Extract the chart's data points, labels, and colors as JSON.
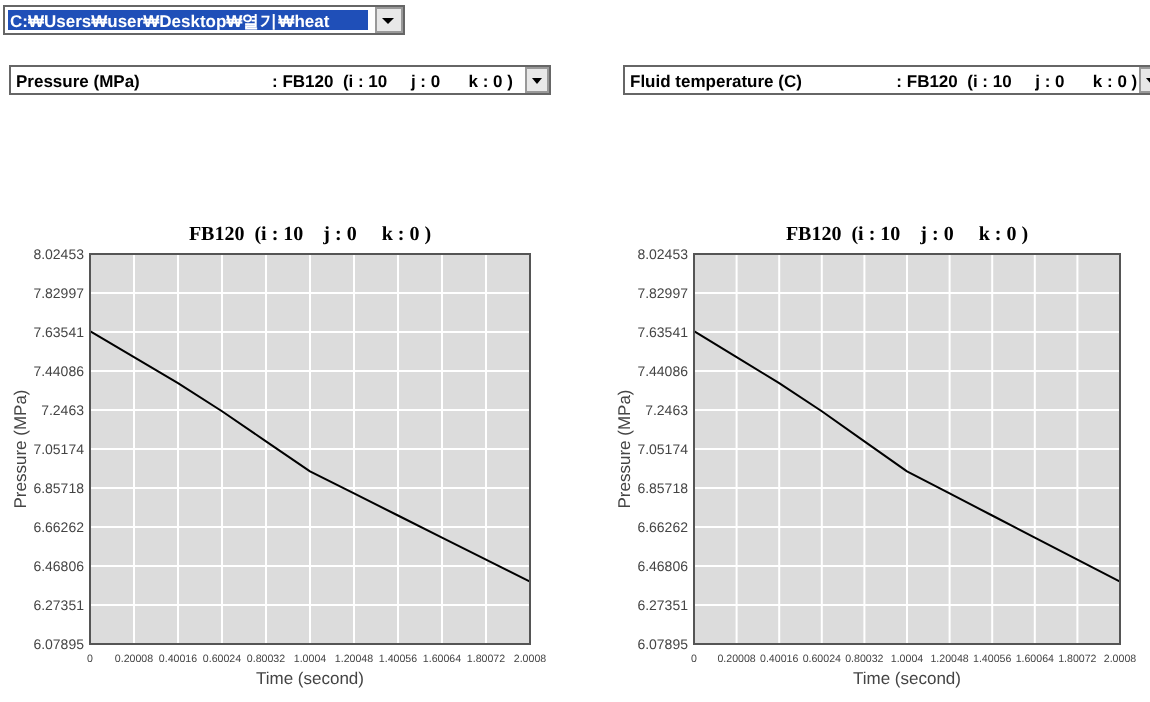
{
  "chart_data": [
    {
      "type": "line",
      "title": "FB120  (i : 10    j : 0     k : 0 )",
      "xlabel": "Time (second)",
      "ylabel": "Pressure (MPa)",
      "annotations": [
        "C:₩Users₩user₩Desktop₩열기₩heat",
        "Pressure (MPa)                            : FB120  (i : 10     j : 0      k : 0 )"
      ],
      "x": [
        0,
        0.20008,
        0.40016,
        0.60024,
        0.80032,
        1.0004,
        1.20048,
        1.40056,
        1.60064,
        1.80072,
        2.0008
      ],
      "series": [
        {
          "color": "#000000",
          "values": [
            7.64,
            7.51,
            7.38,
            7.24,
            7.09,
            6.94,
            6.83,
            6.72,
            6.61,
            6.5,
            6.39
          ]
        }
      ],
      "xlim": [
        0,
        2.0008
      ],
      "xticks": [
        0,
        0.20008,
        0.40016,
        0.60024,
        0.80032,
        1.0004,
        1.20048,
        1.40056,
        1.60064,
        1.80072,
        2.0008
      ],
      "ylim": [
        6.07895,
        8.02453
      ],
      "yticks": [
        6.07895,
        6.27351,
        6.46806,
        6.66262,
        6.85718,
        7.05174,
        7.2463,
        7.44086,
        7.63541,
        7.82997,
        8.02453
      ],
      "grid": true,
      "marker": "none",
      "line_style": "solid"
    },
    {
      "type": "line",
      "title": "FB120  (i : 10    j : 0     k : 0 )",
      "xlabel": "Time (second)",
      "ylabel": "Pressure (MPa)",
      "annotations": [
        "Fluid temperature (C)                    : FB120  (i : 10     j : 0      k : 0 )"
      ],
      "x": [
        0,
        0.20008,
        0.40016,
        0.60024,
        0.80032,
        1.0004,
        1.20048,
        1.40056,
        1.60064,
        1.80072,
        2.0008
      ],
      "series": [
        {
          "color": "#000000",
          "values": [
            7.64,
            7.51,
            7.38,
            7.24,
            7.09,
            6.94,
            6.83,
            6.72,
            6.61,
            6.5,
            6.39
          ]
        }
      ],
      "xlim": [
        0,
        2.0008
      ],
      "xticks": [
        0,
        0.20008,
        0.40016,
        0.60024,
        0.80032,
        1.0004,
        1.20048,
        1.40056,
        1.60064,
        1.80072,
        2.0008
      ],
      "ylim": [
        6.07895,
        8.02453
      ],
      "yticks": [
        6.07895,
        6.27351,
        6.46806,
        6.66262,
        6.85718,
        7.05174,
        7.2463,
        7.44086,
        7.63541,
        7.82997,
        8.02453
      ],
      "grid": true,
      "marker": "none",
      "line_style": "solid"
    }
  ]
}
